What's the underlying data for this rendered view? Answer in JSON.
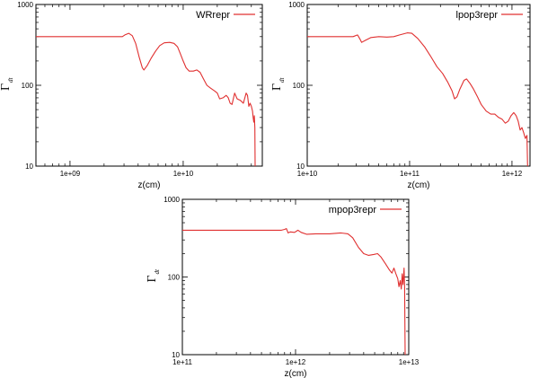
{
  "chart_data": [
    {
      "type": "line",
      "xscale": "log",
      "yscale": "log",
      "xlim": [
        500000000,
        50000000000
      ],
      "ylim": [
        10,
        1000
      ],
      "x_ticks": [
        {
          "v": 1000000000,
          "label": "1e+09"
        },
        {
          "v": 10000000000,
          "label": "1e+10"
        }
      ],
      "y_ticks": [
        {
          "v": 10,
          "label": "10"
        },
        {
          "v": 100,
          "label": "100"
        },
        {
          "v": 1000,
          "label": "1000"
        }
      ],
      "xlabel": "z(cm)",
      "ylabel": "Γ",
      "ylabel_sub": "dt",
      "legend_position": "top-right",
      "series": [
        {
          "name": "WRrepr",
          "color": "#e03030",
          "points": [
            [
              500000000,
              400
            ],
            [
              2900000000,
              400
            ],
            [
              3050000000,
              420
            ],
            [
              3300000000,
              440
            ],
            [
              3550000000,
              410
            ],
            [
              3800000000,
              330
            ],
            [
              4100000000,
              220
            ],
            [
              4350000000,
              165
            ],
            [
              4500000000,
              155
            ],
            [
              4800000000,
              175
            ],
            [
              5200000000,
              215
            ],
            [
              5700000000,
              265
            ],
            [
              6200000000,
              310
            ],
            [
              6800000000,
              335
            ],
            [
              7600000000,
              340
            ],
            [
              8300000000,
              330
            ],
            [
              8900000000,
              300
            ],
            [
              9400000000,
              250
            ],
            [
              10000000000,
              200
            ],
            [
              10600000000,
              165
            ],
            [
              11300000000,
              150
            ],
            [
              12300000000,
              150
            ],
            [
              13200000000,
              155
            ],
            [
              14100000000,
              145
            ],
            [
              15100000000,
              120
            ],
            [
              16200000000,
              100
            ],
            [
              17500000000,
              92
            ],
            [
              19000000000,
              85
            ],
            [
              20000000000,
              80
            ],
            [
              21000000000,
              68
            ],
            [
              22500000000,
              70
            ],
            [
              24000000000,
              75
            ],
            [
              25000000000,
              70
            ],
            [
              26000000000,
              60
            ],
            [
              27000000000,
              58
            ],
            [
              28500000000,
              80
            ],
            [
              30000000000,
              68
            ],
            [
              32000000000,
              65
            ],
            [
              34000000000,
              60
            ],
            [
              36000000000,
              80
            ],
            [
              37000000000,
              75
            ],
            [
              38000000000,
              55
            ],
            [
              39000000000,
              60
            ],
            [
              40000000000,
              55
            ],
            [
              41000000000,
              48
            ],
            [
              41500000000,
              40
            ],
            [
              42000000000,
              35
            ],
            [
              42500000000,
              42
            ],
            [
              43000000000,
              30
            ],
            [
              43200000000,
              10
            ]
          ]
        }
      ]
    },
    {
      "type": "line",
      "xscale": "log",
      "yscale": "log",
      "xlim": [
        10000000000,
        1500000000000
      ],
      "ylim": [
        10,
        1000
      ],
      "x_ticks": [
        {
          "v": 10000000000,
          "label": "1e+10"
        },
        {
          "v": 100000000000,
          "label": "1e+11"
        },
        {
          "v": 1000000000000,
          "label": "1e+12"
        }
      ],
      "y_ticks": [
        {
          "v": 10,
          "label": "10"
        },
        {
          "v": 100,
          "label": "100"
        },
        {
          "v": 1000,
          "label": "1000"
        }
      ],
      "xlabel": "z(cm)",
      "ylabel": "Γ",
      "ylabel_sub": "dt",
      "legend_position": "top-right",
      "series": [
        {
          "name": "lpop3repr",
          "color": "#e03030",
          "points": [
            [
              10000000000,
              400
            ],
            [
              28000000000,
              400
            ],
            [
              31000000000,
              420
            ],
            [
              32500000000,
              380
            ],
            [
              34000000000,
              340
            ],
            [
              37000000000,
              360
            ],
            [
              42000000000,
              390
            ],
            [
              50000000000,
              400
            ],
            [
              60000000000,
              395
            ],
            [
              70000000000,
              400
            ],
            [
              80000000000,
              420
            ],
            [
              95000000000,
              445
            ],
            [
              105000000000,
              440
            ],
            [
              120000000000,
              380
            ],
            [
              140000000000,
              300
            ],
            [
              160000000000,
              230
            ],
            [
              185000000000,
              170
            ],
            [
              210000000000,
              140
            ],
            [
              235000000000,
              110
            ],
            [
              260000000000,
              85
            ],
            [
              275000000000,
              68
            ],
            [
              290000000000,
              72
            ],
            [
              310000000000,
              90
            ],
            [
              340000000000,
              115
            ],
            [
              360000000000,
              120
            ],
            [
              390000000000,
              105
            ],
            [
              420000000000,
              90
            ],
            [
              460000000000,
              72
            ],
            [
              500000000000,
              58
            ],
            [
              560000000000,
              48
            ],
            [
              620000000000,
              44
            ],
            [
              680000000000,
              44
            ],
            [
              740000000000,
              40
            ],
            [
              800000000000,
              38
            ],
            [
              860000000000,
              34
            ],
            [
              920000000000,
              36
            ],
            [
              980000000000,
              42
            ],
            [
              1040000000000,
              46
            ],
            [
              1100000000000,
              42
            ],
            [
              1150000000000,
              36
            ],
            [
              1200000000000,
              28
            ],
            [
              1250000000000,
              30
            ],
            [
              1300000000000,
              26
            ],
            [
              1350000000000,
              22
            ],
            [
              1400000000000,
              24
            ],
            [
              1420000000000,
              10
            ]
          ]
        }
      ]
    },
    {
      "type": "line",
      "xscale": "log",
      "yscale": "log",
      "xlim": [
        100000000000,
        10000000000000
      ],
      "ylim": [
        10,
        1000
      ],
      "x_ticks": [
        {
          "v": 100000000000,
          "label": "1e+11"
        },
        {
          "v": 1000000000000,
          "label": "1e+12"
        },
        {
          "v": 10000000000000,
          "label": "1e+13"
        }
      ],
      "y_ticks": [
        {
          "v": 10,
          "label": "10"
        },
        {
          "v": 100,
          "label": "100"
        },
        {
          "v": 1000,
          "label": "1000"
        }
      ],
      "xlabel": "z(cm)",
      "ylabel": "Γ",
      "ylabel_sub": "dt",
      "legend_position": "top-right",
      "series": [
        {
          "name": "mpop3repr",
          "color": "#e03030",
          "points": [
            [
              100000000000,
              400
            ],
            [
              750000000000,
              400
            ],
            [
              800000000000,
              410
            ],
            [
              830000000000,
              420
            ],
            [
              860000000000,
              370
            ],
            [
              900000000000,
              380
            ],
            [
              980000000000,
              375
            ],
            [
              1050000000000,
              400
            ],
            [
              1120000000000,
              375
            ],
            [
              1250000000000,
              355
            ],
            [
              1500000000000,
              360
            ],
            [
              2000000000000,
              360
            ],
            [
              2500000000000,
              370
            ],
            [
              2900000000000,
              360
            ],
            [
              3200000000000,
              320
            ],
            [
              3600000000000,
              240
            ],
            [
              4000000000000,
              200
            ],
            [
              4400000000000,
              190
            ],
            [
              4900000000000,
              195
            ],
            [
              5300000000000,
              200
            ],
            [
              5700000000000,
              180
            ],
            [
              6200000000000,
              150
            ],
            [
              6700000000000,
              125
            ],
            [
              7100000000000,
              112
            ],
            [
              7400000000000,
              130
            ],
            [
              7700000000000,
              110
            ],
            [
              8000000000000,
              95
            ],
            [
              8200000000000,
              75
            ],
            [
              8400000000000,
              90
            ],
            [
              8600000000000,
              70
            ],
            [
              8750000000000,
              110
            ],
            [
              8900000000000,
              80
            ],
            [
              9000000000000,
              100
            ],
            [
              9100000000000,
              130
            ],
            [
              9200000000000,
              75
            ],
            [
              9300000000000,
              10
            ]
          ]
        }
      ]
    }
  ]
}
